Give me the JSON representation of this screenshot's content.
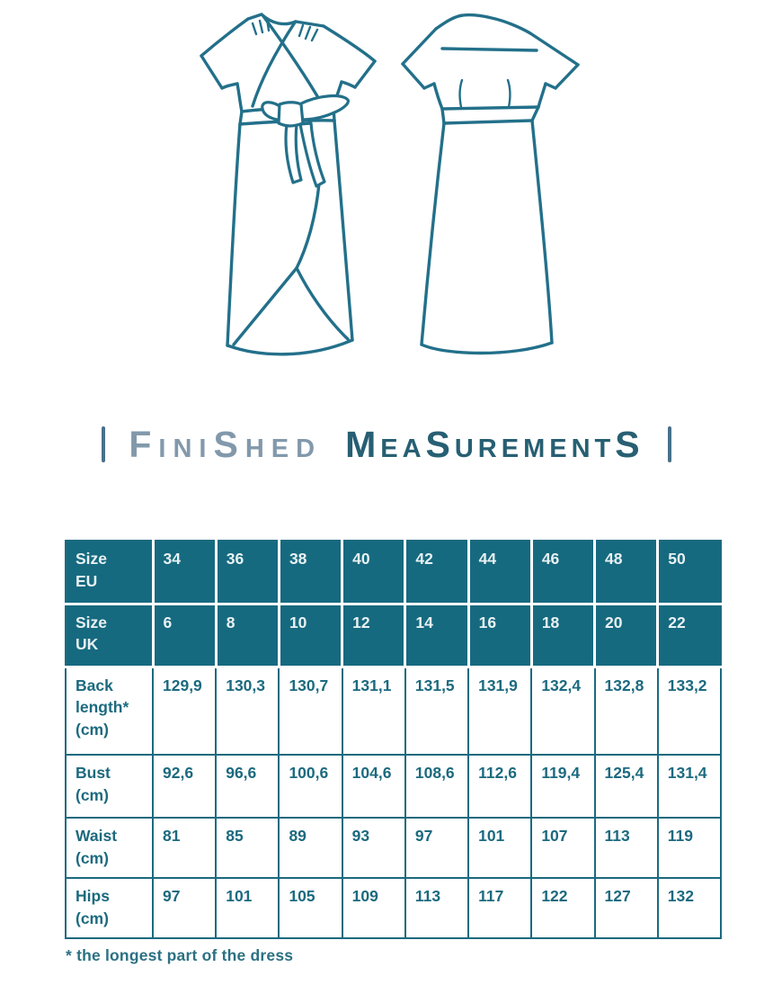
{
  "colors": {
    "illustration_line": "#23708a",
    "table_header_bg": "#166a7f",
    "table_header_text": "#e8f1f3",
    "table_body_text": "#1c6a7f",
    "table_border": "#1c6a7f",
    "heading_word1": "#8299ab",
    "heading_word2": "#275f73",
    "footnote_text": "#2b7183"
  },
  "heading": {
    "word1": "FiniShed",
    "word2": "MeaSurementS"
  },
  "illustrations": {
    "front": "wrap dress front view line drawing",
    "back": "dress back view line drawing"
  },
  "table": {
    "rows": [
      {
        "header": true,
        "label": "Size\nEU",
        "values": [
          "34",
          "36",
          "38",
          "40",
          "42",
          "44",
          "46",
          "48",
          "50"
        ]
      },
      {
        "header": true,
        "label": "Size\nUK",
        "values": [
          "6",
          "8",
          "10",
          "12",
          "14",
          "16",
          "18",
          "20",
          "22"
        ]
      },
      {
        "header": false,
        "label": "Back\nlength*\n(cm)",
        "values": [
          "129,9",
          "130,3",
          "130,7",
          "131,1",
          "131,5",
          "131,9",
          "132,4",
          "132,8",
          "133,2"
        ]
      },
      {
        "header": false,
        "label": "Bust\n(cm)",
        "values": [
          "92,6",
          "96,6",
          "100,6",
          "104,6",
          "108,6",
          "112,6",
          "119,4",
          "125,4",
          "131,4"
        ]
      },
      {
        "header": false,
        "label": "Waist\n(cm)",
        "values": [
          "81",
          "85",
          "89",
          "93",
          "97",
          "101",
          "107",
          "113",
          "119"
        ]
      },
      {
        "header": false,
        "label": "Hips\n(cm)",
        "values": [
          "97",
          "101",
          "105",
          "109",
          "113",
          "117",
          "122",
          "127",
          "132"
        ]
      }
    ]
  },
  "footnote": "* the longest part of the dress",
  "chart_data": {
    "type": "table",
    "title": "Finished measurements",
    "size_eu": [
      34,
      36,
      38,
      40,
      42,
      44,
      46,
      48,
      50
    ],
    "size_uk": [
      6,
      8,
      10,
      12,
      14,
      16,
      18,
      20,
      22
    ],
    "rows": [
      {
        "label": "Back length* (cm)",
        "values": [
          129.9,
          130.3,
          130.7,
          131.1,
          131.5,
          131.9,
          132.4,
          132.8,
          133.2
        ]
      },
      {
        "label": "Bust (cm)",
        "values": [
          92.6,
          96.6,
          100.6,
          104.6,
          108.6,
          112.6,
          119.4,
          125.4,
          131.4
        ]
      },
      {
        "label": "Waist (cm)",
        "values": [
          81,
          85,
          89,
          93,
          97,
          101,
          107,
          113,
          119
        ]
      },
      {
        "label": "Hips (cm)",
        "values": [
          97,
          101,
          105,
          109,
          113,
          117,
          122,
          127,
          132
        ]
      }
    ],
    "footnote": "* the longest part of the dress"
  }
}
